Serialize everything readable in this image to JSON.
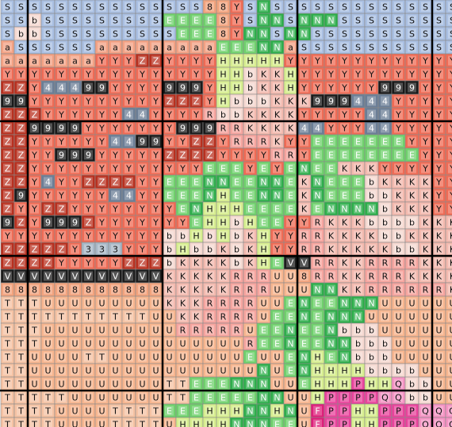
{
  "grid": {
    "rows": [
      "SSSSSSSSSSSSSSS88YSNSSSSSSSSSSSSSS",
      "SSbSSSSSSSSSEEEE8YSNNSNNNSSSSSSSSS",
      "SbbSSSSSSSSSSEEE8YNNSNNSSSSSSSSSSS",
      "aSSSSSSaaaaaaaaaEEENNaSSSSSSSSSSSS",
      "aaaaaaaYYYZZYYYYHHHHHYYYYYYYYYYYYY",
      "YYYYYYYYYYYYYYYYHHbKKHYYYYYYYYYYYY",
      "ZZY44499YYYY999YHHbKKHYYYYYY999YYY",
      "99YYYYYYYYYYZZZYHbbbKKK999444YYYYY",
      "ZZZYYYYYY44YYYYRbbKKKKYYYYY44YYYYY",
      "ZZ9999YYYYYYY999RRKKKK44YYY44YYYYY",
      "ZZYYYYYY4499YYZZYRRRKYYEEEEEEEYYYY",
      "ZZYY999YYYYYZZZZYYYYRRYEEEEEEEEYYY",
      "ZZYYYYYYYYYYYYYEEEYEYENEEKKKYYYYYY",
      "ZZY4YYZZZZYYEEENNEENNEKNEEEbKKKKYY",
      "Z9YYYYYY44YYEEENHEENNEKNEEEbbKKKYY",
      "ZYYZZYYYYYYYYENHHHEEEEKENNNNbKKKYY",
      "9ZY999ZYYYYYYYEHHbHEEYYRKKKbbbbKKK",
      "YYYYYYYYYYYYbbHbHbKHYYRRKKKKbbKKKK",
      "ZZZZZY333YYYbHbbKbKHYYRRKKKKKbbKKK",
      "ZZZZYYYYYZZZbKKKKbKHEVVRRKKRRRRKKK",
      "VVVVVVVVVVVVKKKKKRRRUU8RRKKRRRKKKK",
      "888888888888KKKKKRRRUUUNNKKRRRRRRK",
      "TTTUUUUUUUUUKKKRRRRUUENEENNNUUUUUU",
      "TTTTTTTTTTTUUKKRRRRUEENENNNUUUUUUU",
      "TTTUUUUUUUUUURRRRRUEENEENbbbUUUUUU",
      "TTTUUUUUUUUUUUUUUUREENEENNbbbUUUUU",
      "TTUUUUTTUUUUUUUUUUEUUENHENbbbUUUUU",
      "TTUUUUUUUUUUUUUUUUUNUENHHHHbbbbUUU",
      "TTUUUUUUUUUUTTEEENNNUUEHHHPHHQbbUU",
      "TTTTTUUUUUUUTTEEEEENNUUHPPPPQQbbUU",
      "TTTTUUUUTTTTEEEHHHNNHNUFPPHHPPPQQQ",
      "TTTTUUUUTTTTUHHHHNNNEEUFPPHHPPPQQQ"
    ]
  },
  "key": {
    "S": {
      "fill": "#a9bfe2",
      "ink": "#111"
    },
    "8": {
      "fill": "#f2a27c",
      "ink": "#111"
    },
    "Y": {
      "fill": "#ef6b55",
      "ink": "#111"
    },
    "N": {
      "fill": "#2eae4b",
      "ink": "#fff"
    },
    "E": {
      "fill": "#6fd06c",
      "ink": "#fff"
    },
    "a": {
      "fill": "#f3a183",
      "ink": "#111"
    },
    "Z": {
      "fill": "#b8301f",
      "ink": "#fff"
    },
    "4": {
      "fill": "#6b7e96",
      "ink": "#fff"
    },
    "9": {
      "fill": "#1a1a1a",
      "ink": "#fff"
    },
    "H": {
      "fill": "#d7ee8f",
      "ink": "#111"
    },
    "b": {
      "fill": "#f5d8d0",
      "ink": "#111"
    },
    "K": {
      "fill": "#f3b9ae",
      "ink": "#111"
    },
    "R": {
      "fill": "#f6a49e",
      "ink": "#111"
    },
    "V": {
      "fill": "#1c1c1c",
      "ink": "#fff"
    },
    "3": {
      "fill": "#a7b7c6",
      "ink": "#111"
    },
    "U": {
      "fill": "#f7b58e",
      "ink": "#111"
    },
    "T": {
      "fill": "#f5c2a3",
      "ink": "#111"
    },
    "P": {
      "fill": "#e8439b",
      "ink": "#111"
    },
    "Q": {
      "fill": "#f593c3",
      "ink": "#111"
    },
    "F": {
      "fill": "#de1f7a",
      "ink": "#fff"
    }
  }
}
